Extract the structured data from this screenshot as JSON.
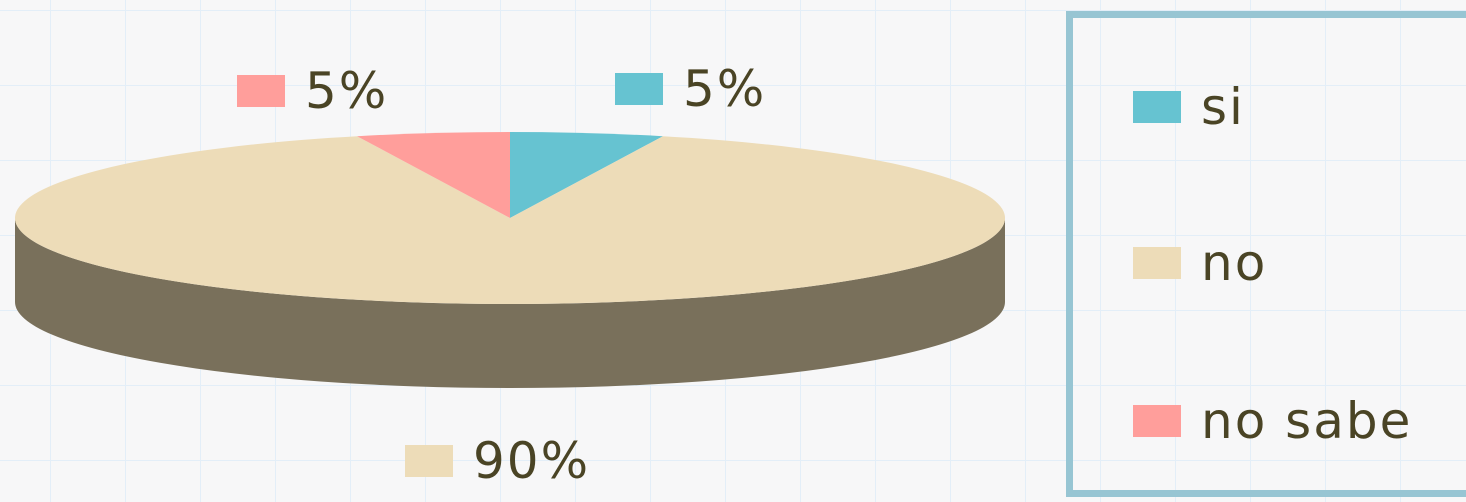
{
  "chart_data": {
    "type": "pie",
    "title": "",
    "three_d": true,
    "categories": [
      "si",
      "no",
      "no sabe"
    ],
    "values": [
      5,
      90,
      5
    ],
    "value_labels": [
      "5%",
      "90%",
      "5%"
    ],
    "colors": [
      "#66c3d1",
      "#eddcb8",
      "#ff9e9b"
    ],
    "side_color": "#79705b",
    "legend": {
      "position": "right",
      "items": [
        {
          "label": "si",
          "color": "#66c3d1"
        },
        {
          "label": "no",
          "color": "#eddcb8"
        },
        {
          "label": "no sabe",
          "color": "#ff9e9b"
        }
      ]
    }
  }
}
